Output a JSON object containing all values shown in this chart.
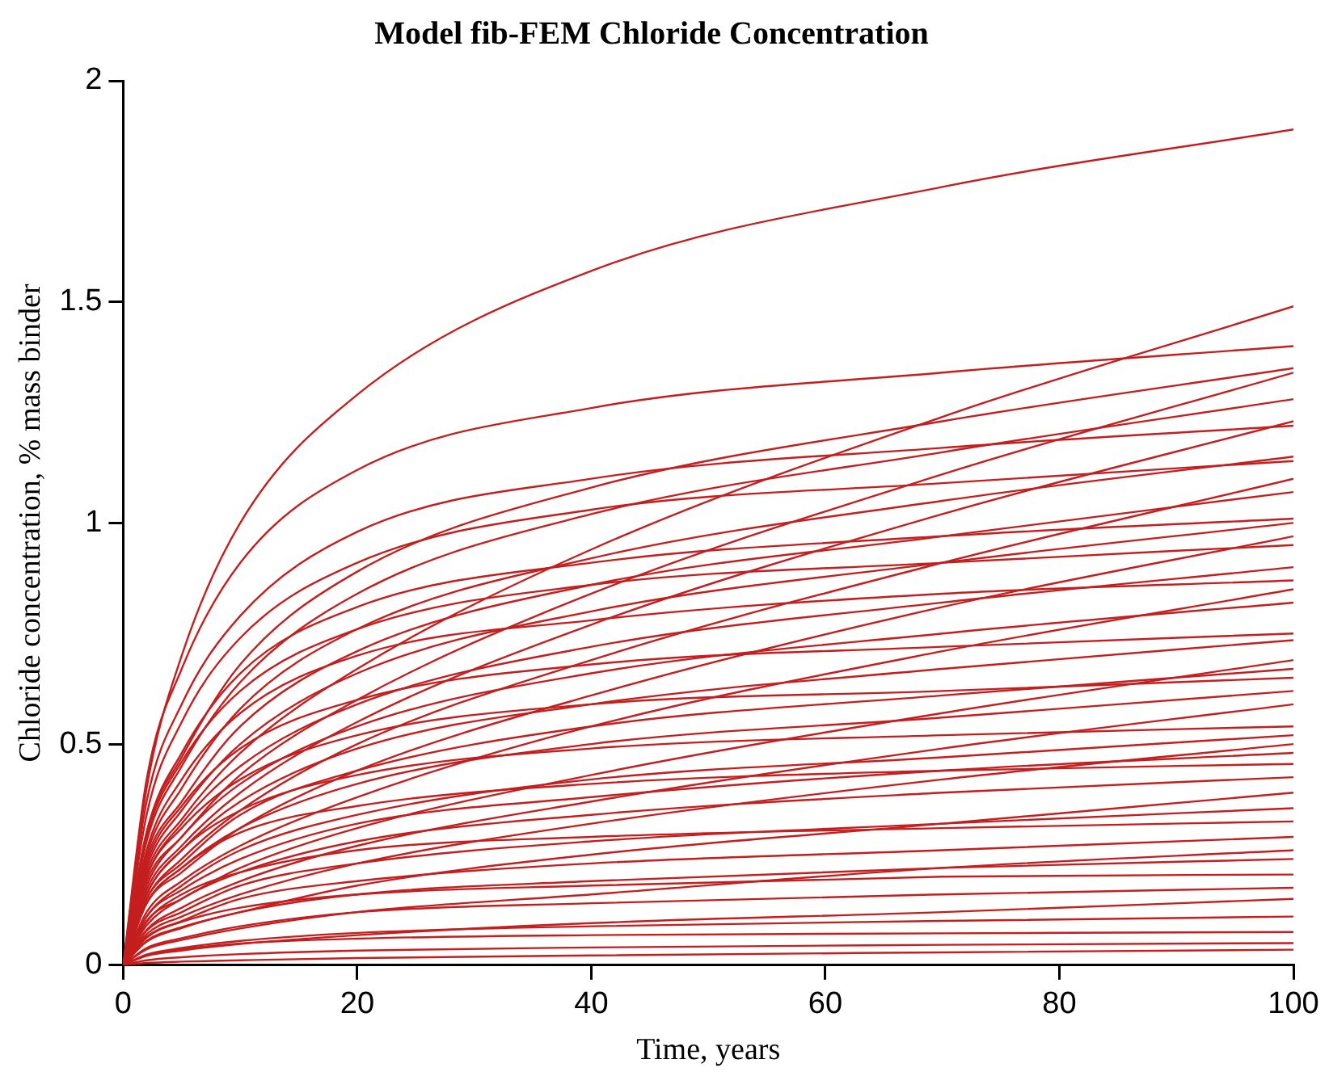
{
  "chart_data": {
    "type": "line",
    "title": "Model fib-FEM Chloride Concentration",
    "xlabel": "Time, years",
    "ylabel": "Chloride concentration, % mass binder",
    "x": [
      0,
      2,
      5,
      10,
      20,
      40,
      70,
      100
    ],
    "xlim": [
      0,
      100
    ],
    "ylim": [
      0,
      2
    ],
    "xticks": [
      0,
      20,
      40,
      60,
      80,
      100
    ],
    "yticks": [
      0,
      0.5,
      1,
      1.5,
      2
    ],
    "marker": "none",
    "line_style": "solid",
    "series": [
      {
        "color": "#c41e1e",
        "values": [
          0,
          0.4,
          0.7,
          1.0,
          1.29,
          1.57,
          1.76,
          1.89
        ]
      },
      {
        "color": "#c41e1e",
        "values": [
          0,
          0.21,
          0.33,
          0.48,
          0.67,
          0.94,
          1.24,
          1.49
        ]
      },
      {
        "color": "#c41e1e",
        "values": [
          0,
          0.42,
          0.67,
          0.91,
          1.12,
          1.26,
          1.34,
          1.4
        ]
      },
      {
        "color": "#c41e1e",
        "values": [
          0,
          0.3,
          0.47,
          0.68,
          0.89,
          1.08,
          1.23,
          1.35
        ]
      },
      {
        "color": "#c41e1e",
        "values": [
          0,
          0.19,
          0.29,
          0.43,
          0.6,
          0.84,
          1.11,
          1.34
        ]
      },
      {
        "color": "#c41e1e",
        "values": [
          0,
          0.28,
          0.45,
          0.64,
          0.84,
          1.02,
          1.16,
          1.28
        ]
      },
      {
        "color": "#c41e1e",
        "values": [
          0,
          0.17,
          0.27,
          0.39,
          0.55,
          0.77,
          1.02,
          1.23
        ]
      },
      {
        "color": "#c41e1e",
        "values": [
          0,
          0.37,
          0.59,
          0.79,
          0.98,
          1.1,
          1.17,
          1.22
        ]
      },
      {
        "color": "#c41e1e",
        "values": [
          0,
          0.25,
          0.4,
          0.58,
          0.76,
          0.92,
          1.05,
          1.15
        ]
      },
      {
        "color": "#c41e1e",
        "values": [
          0,
          0.34,
          0.55,
          0.74,
          0.91,
          1.03,
          1.09,
          1.14
        ]
      },
      {
        "color": "#c41e1e",
        "values": [
          0,
          0.15,
          0.24,
          0.35,
          0.5,
          0.69,
          0.91,
          1.1
        ]
      },
      {
        "color": "#c41e1e",
        "values": [
          0,
          0.24,
          0.37,
          0.54,
          0.71,
          0.86,
          0.97,
          1.07
        ]
      },
      {
        "color": "#c41e1e",
        "values": [
          0,
          0.3,
          0.48,
          0.66,
          0.81,
          0.91,
          0.97,
          1.01
        ]
      },
      {
        "color": "#c41e1e",
        "values": [
          0,
          0.22,
          0.35,
          0.5,
          0.66,
          0.8,
          0.91,
          1.0
        ]
      },
      {
        "color": "#c41e1e",
        "values": [
          0,
          0.14,
          0.21,
          0.31,
          0.44,
          0.61,
          0.81,
          0.97
        ]
      },
      {
        "color": "#c41e1e",
        "values": [
          0,
          0.29,
          0.46,
          0.62,
          0.76,
          0.86,
          0.91,
          0.95
        ]
      },
      {
        "color": "#c41e1e",
        "values": [
          0,
          0.2,
          0.32,
          0.45,
          0.59,
          0.72,
          0.82,
          0.9
        ]
      },
      {
        "color": "#c41e1e",
        "values": [
          0,
          0.26,
          0.42,
          0.57,
          0.7,
          0.78,
          0.84,
          0.87
        ]
      },
      {
        "color": "#c41e1e",
        "values": [
          0,
          0.12,
          0.19,
          0.27,
          0.38,
          0.54,
          0.71,
          0.85
        ]
      },
      {
        "color": "#c41e1e",
        "values": [
          0,
          0.18,
          0.29,
          0.41,
          0.54,
          0.66,
          0.75,
          0.82
        ]
      },
      {
        "color": "#c41e1e",
        "values": [
          0,
          0.23,
          0.36,
          0.49,
          0.6,
          0.68,
          0.72,
          0.75
        ]
      },
      {
        "color": "#c41e1e",
        "values": [
          0,
          0.16,
          0.26,
          0.37,
          0.49,
          0.59,
          0.67,
          0.735
        ]
      },
      {
        "color": "#c41e1e",
        "values": [
          0,
          0.1,
          0.15,
          0.22,
          0.31,
          0.43,
          0.57,
          0.69
        ]
      },
      {
        "color": "#c41e1e",
        "values": [
          0,
          0.15,
          0.23,
          0.34,
          0.44,
          0.54,
          0.61,
          0.67
        ]
      },
      {
        "color": "#c41e1e",
        "values": [
          0,
          0.2,
          0.31,
          0.42,
          0.52,
          0.59,
          0.62,
          0.65
        ]
      },
      {
        "color": "#c41e1e",
        "values": [
          0,
          0.14,
          0.22,
          0.31,
          0.41,
          0.5,
          0.56,
          0.62
        ]
      },
      {
        "color": "#c41e1e",
        "values": [
          0,
          0.08,
          0.13,
          0.19,
          0.27,
          0.37,
          0.49,
          0.59
        ]
      },
      {
        "color": "#c41e1e",
        "values": [
          0,
          0.16,
          0.26,
          0.35,
          0.43,
          0.49,
          0.52,
          0.54
        ]
      },
      {
        "color": "#c41e1e",
        "values": [
          0,
          0.11,
          0.18,
          0.26,
          0.34,
          0.42,
          0.47,
          0.52
        ]
      },
      {
        "color": "#c41e1e",
        "values": [
          0,
          0.07,
          0.11,
          0.16,
          0.23,
          0.32,
          0.42,
          0.5
        ]
      },
      {
        "color": "#c41e1e",
        "values": [
          0,
          0.11,
          0.17,
          0.24,
          0.32,
          0.38,
          0.44,
          0.48
        ]
      },
      {
        "color": "#c41e1e",
        "values": [
          0,
          0.14,
          0.22,
          0.3,
          0.36,
          0.41,
          0.44,
          0.455
        ]
      },
      {
        "color": "#c41e1e",
        "values": [
          0,
          0.09,
          0.15,
          0.21,
          0.28,
          0.34,
          0.39,
          0.425
        ]
      },
      {
        "color": "#c41e1e",
        "values": [
          0,
          0.055,
          0.086,
          0.12,
          0.18,
          0.25,
          0.32,
          0.39
        ]
      },
      {
        "color": "#c41e1e",
        "values": [
          0,
          0.078,
          0.12,
          0.18,
          0.23,
          0.28,
          0.32,
          0.355
        ]
      },
      {
        "color": "#c41e1e",
        "values": [
          0,
          0.098,
          0.16,
          0.21,
          0.26,
          0.29,
          0.31,
          0.325
        ]
      },
      {
        "color": "#c41e1e",
        "values": [
          0,
          0.064,
          0.1,
          0.15,
          0.19,
          0.23,
          0.26,
          0.29
        ]
      },
      {
        "color": "#c41e1e",
        "values": [
          0,
          0.036,
          0.057,
          0.083,
          0.12,
          0.16,
          0.22,
          0.26
        ]
      },
      {
        "color": "#c41e1e",
        "values": [
          0,
          0.053,
          0.084,
          0.12,
          0.16,
          0.19,
          0.22,
          0.24
        ]
      },
      {
        "color": "#c41e1e",
        "values": [
          0,
          0.062,
          0.098,
          0.13,
          0.16,
          0.18,
          0.2,
          0.205
        ]
      },
      {
        "color": "#c41e1e",
        "values": [
          0,
          0.039,
          0.061,
          0.088,
          0.12,
          0.14,
          0.16,
          0.175
        ]
      },
      {
        "color": "#c41e1e",
        "values": [
          0,
          0.021,
          0.033,
          0.048,
          0.068,
          0.095,
          0.12,
          0.15
        ]
      },
      {
        "color": "#c41e1e",
        "values": [
          0,
          0.024,
          0.039,
          0.055,
          0.073,
          0.088,
          0.1,
          0.11
        ]
      },
      {
        "color": "#c41e1e",
        "values": [
          0,
          0.023,
          0.036,
          0.049,
          0.06,
          0.068,
          0.072,
          0.075
        ]
      },
      {
        "color": "#c41e1e",
        "values": [
          0,
          0.011,
          0.018,
          0.025,
          0.033,
          0.04,
          0.046,
          0.05
        ]
      },
      {
        "color": "#c41e1e",
        "values": [
          0,
          0.005,
          0.008,
          0.011,
          0.016,
          0.022,
          0.029,
          0.035
        ]
      }
    ]
  }
}
